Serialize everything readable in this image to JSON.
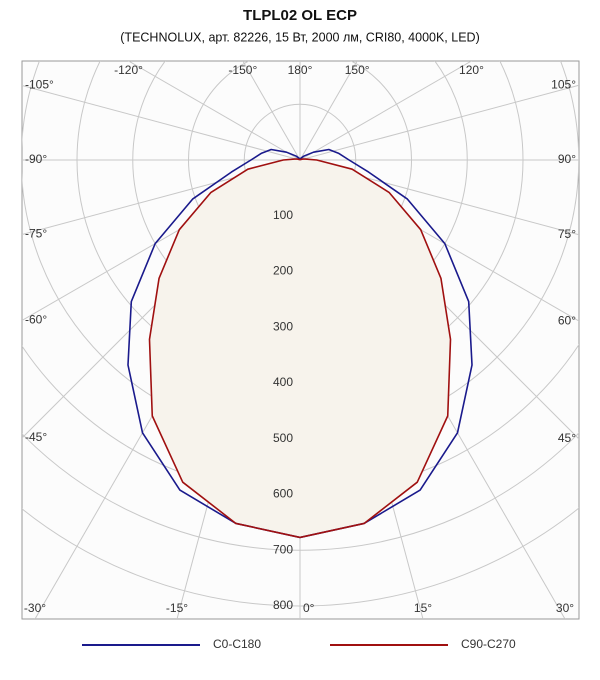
{
  "chart_data": {
    "type": "polar",
    "title": "TLPL02 OL ECP",
    "subtitle": "(TECHNOLUX, арт. 82226, 15 Вт, 2000 лм, CRI80, 4000K, LED)",
    "angles": [
      0,
      10,
      20,
      30,
      40,
      50,
      60,
      70,
      80,
      90,
      100,
      110,
      120,
      135,
      150,
      165,
      180
    ],
    "series": [
      {
        "name": "C0-C180",
        "color": "#1a1a8c",
        "values": [
          677,
          662,
          630,
          565,
          480,
          395,
          300,
          205,
          125,
          88,
          70,
          55,
          28,
          10,
          4,
          2,
          0
        ]
      },
      {
        "name": "C90-C270",
        "color": "#a01010",
        "fill": "#f7f3ec",
        "values": [
          677,
          662,
          615,
          530,
          420,
          330,
          250,
          170,
          95,
          30,
          10,
          5,
          2,
          1,
          0,
          0,
          0
        ]
      }
    ],
    "rlim": [
      0,
      800
    ],
    "rticks": [
      100,
      200,
      300,
      400,
      500,
      600,
      700,
      800
    ],
    "angle_ticks": [
      {
        "value": -30,
        "label": "-30°"
      },
      {
        "value": -15,
        "label": "-15°"
      },
      {
        "value": 0,
        "label": "0°"
      },
      {
        "value": 15,
        "label": "15°"
      },
      {
        "value": 30,
        "label": "30°"
      },
      {
        "value": 45,
        "label": "45°"
      },
      {
        "value": 60,
        "label": "60°"
      },
      {
        "value": 75,
        "label": "75°"
      },
      {
        "value": 90,
        "label": "90°"
      },
      {
        "value": 105,
        "label": "105°"
      },
      {
        "value": 120,
        "label": "120°"
      },
      {
        "value": 150,
        "label": "150°"
      },
      {
        "value": 180,
        "label": "180°"
      },
      {
        "value": -150,
        "label": "-150°"
      },
      {
        "value": -120,
        "label": "-120°"
      },
      {
        "value": -105,
        "label": "-105°"
      },
      {
        "value": -90,
        "label": "-90°"
      },
      {
        "value": -75,
        "label": "-75°"
      },
      {
        "value": -60,
        "label": "-60°"
      },
      {
        "value": -45,
        "label": "-45°"
      }
    ]
  }
}
